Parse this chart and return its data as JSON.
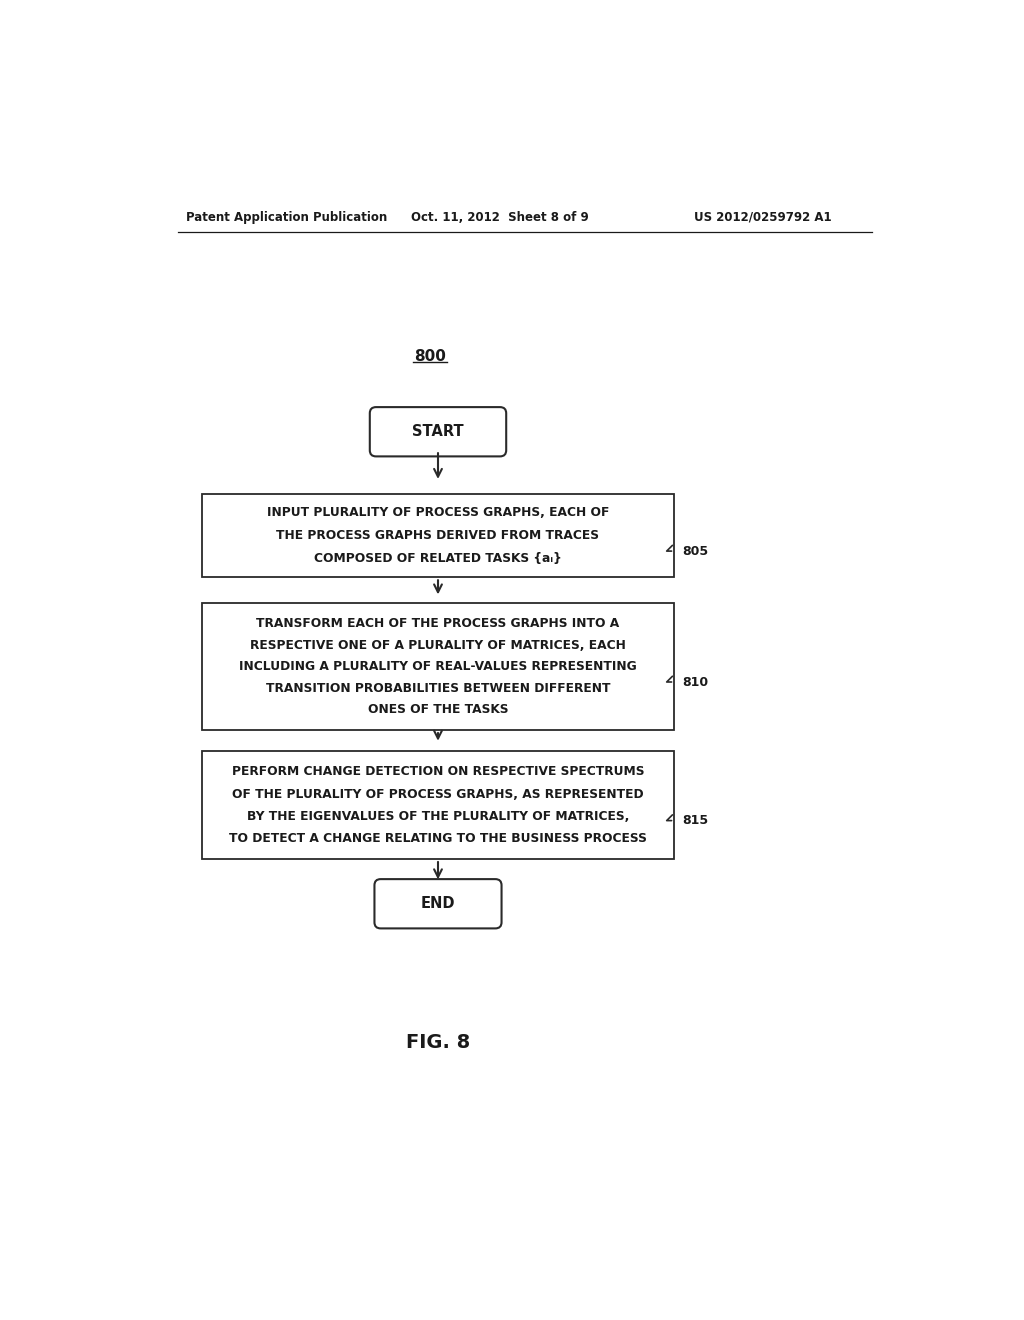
{
  "bg_color": "#ffffff",
  "header_left": "Patent Application Publication",
  "header_mid": "Oct. 11, 2012  Sheet 8 of 9",
  "header_right": "US 2012/0259792 A1",
  "figure_label": "800",
  "fig_caption": "FIG. 8",
  "start_text": "START",
  "end_text": "END",
  "box1_line1": "INPUT PLURALITY OF PROCESS GRAPHS, EACH OF",
  "box1_line2": "THE PROCESS GRAPHS DERIVED FROM TRACES",
  "box1_line3": "COMPOSED OF RELATED TASKS {aᵢ}",
  "box1_label": "805",
  "box2_line1": "TRANSFORM EACH OF THE PROCESS GRAPHS INTO A",
  "box2_line2": "RESPECTIVE ONE OF A PLURALITY OF MATRICES, EACH",
  "box2_line3": "INCLUDING A PLURALITY OF REAL-VALUES REPRESENTING",
  "box2_line4": "TRANSITION PROBABILITIES BETWEEN DIFFERENT",
  "box2_line5": "ONES OF THE TASKS",
  "box2_label": "810",
  "box3_line1": "PERFORM CHANGE DETECTION ON RESPECTIVE SPECTRUMS",
  "box3_line2": "OF THE PLURALITY OF PROCESS GRAPHS, AS REPRESENTED",
  "box3_line3": "BY THE EIGENVALUES OF THE PLURALITY OF MATRICES,",
  "box3_line4": "TO DETECT A CHANGE RELATING TO THE BUSINESS PROCESS",
  "box3_label": "815",
  "text_color": "#1a1a1a",
  "box_edge_color": "#2a2a2a",
  "arrow_color": "#2a2a2a",
  "font_size_header": 8.5,
  "font_size_body": 8.8,
  "font_size_label": 9.0,
  "font_size_terminal": 10.5,
  "font_size_fig": 14
}
